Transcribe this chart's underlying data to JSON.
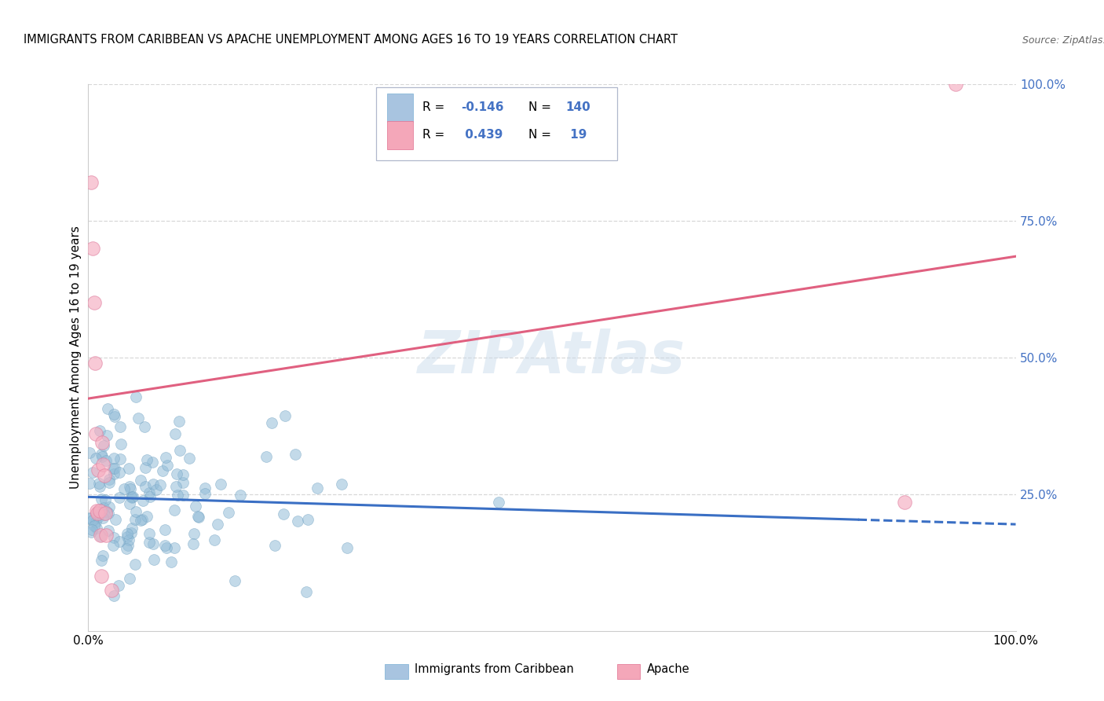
{
  "title": "IMMIGRANTS FROM CARIBBEAN VS APACHE UNEMPLOYMENT AMONG AGES 16 TO 19 YEARS CORRELATION CHART",
  "source": "Source: ZipAtlas.com",
  "ylabel": "Unemployment Among Ages 16 to 19 years",
  "watermark": "ZIPAtlas",
  "xmin": 0.0,
  "xmax": 1.0,
  "ymin": 0.0,
  "ymax": 1.0,
  "right_yticks": [
    0.0,
    0.25,
    0.5,
    0.75,
    1.0
  ],
  "right_yticklabels": [
    "",
    "25.0%",
    "50.0%",
    "75.0%",
    "100.0%"
  ],
  "bottom_xticklabels": [
    "0.0%",
    "100.0%"
  ],
  "grid_color": "#d8d8d8",
  "background_color": "#ffffff",
  "scatter_blue_color": "#92bcd8",
  "scatter_blue_alpha": 0.55,
  "scatter_blue_size": 100,
  "scatter_blue_edge": "#6fa0c0",
  "scatter_pink_color": "#f5adc0",
  "scatter_pink_alpha": 0.65,
  "scatter_pink_size": 160,
  "scatter_pink_edge": "#e080a0",
  "trend_blue_color": "#3a6fc4",
  "trend_blue_lw": 2.2,
  "trend_blue_x0": 0.0,
  "trend_blue_y0": 0.245,
  "trend_blue_x1": 1.0,
  "trend_blue_y1": 0.195,
  "trend_pink_color": "#e06080",
  "trend_pink_lw": 2.2,
  "trend_pink_x0": 0.0,
  "trend_pink_y0": 0.425,
  "trend_pink_x1": 1.0,
  "trend_pink_y1": 0.685,
  "legend_R1": "-0.146",
  "legend_N1": "140",
  "legend_R2": " 0.439",
  "legend_N2": " 19",
  "legend_color": "#4472c4",
  "label_blue": "Immigrants from Caribbean",
  "label_pink": "Apache"
}
